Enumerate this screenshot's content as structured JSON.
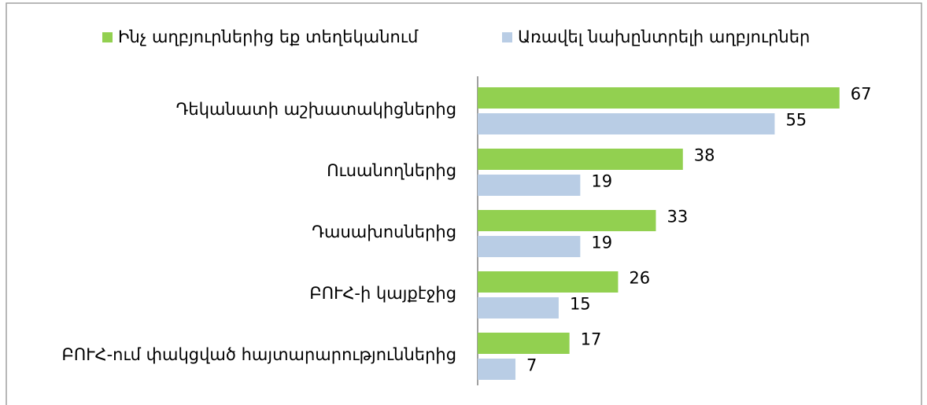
{
  "chart_data": {
    "type": "bar",
    "orientation": "horizontal",
    "categories": [
      "Դեկանատի աշխատակիցներից",
      "Ուսանողներից",
      "Դասախոսներից",
      "ԲՈՒՀ-ի կայքէջից",
      "ԲՈՒՀ-ում փակցված հայտարարություններից"
    ],
    "series": [
      {
        "name": "Ինչ աղբյուրներից եք տեղեկանում",
        "color": "#92d050",
        "values": [
          67,
          38,
          33,
          26,
          17
        ]
      },
      {
        "name": "Առավել նախընտրելի աղբյուրներ",
        "color": "#b9cde5",
        "values": [
          55,
          19,
          19,
          15,
          7
        ]
      }
    ],
    "xlim": [
      0,
      80
    ],
    "legend": "top"
  }
}
